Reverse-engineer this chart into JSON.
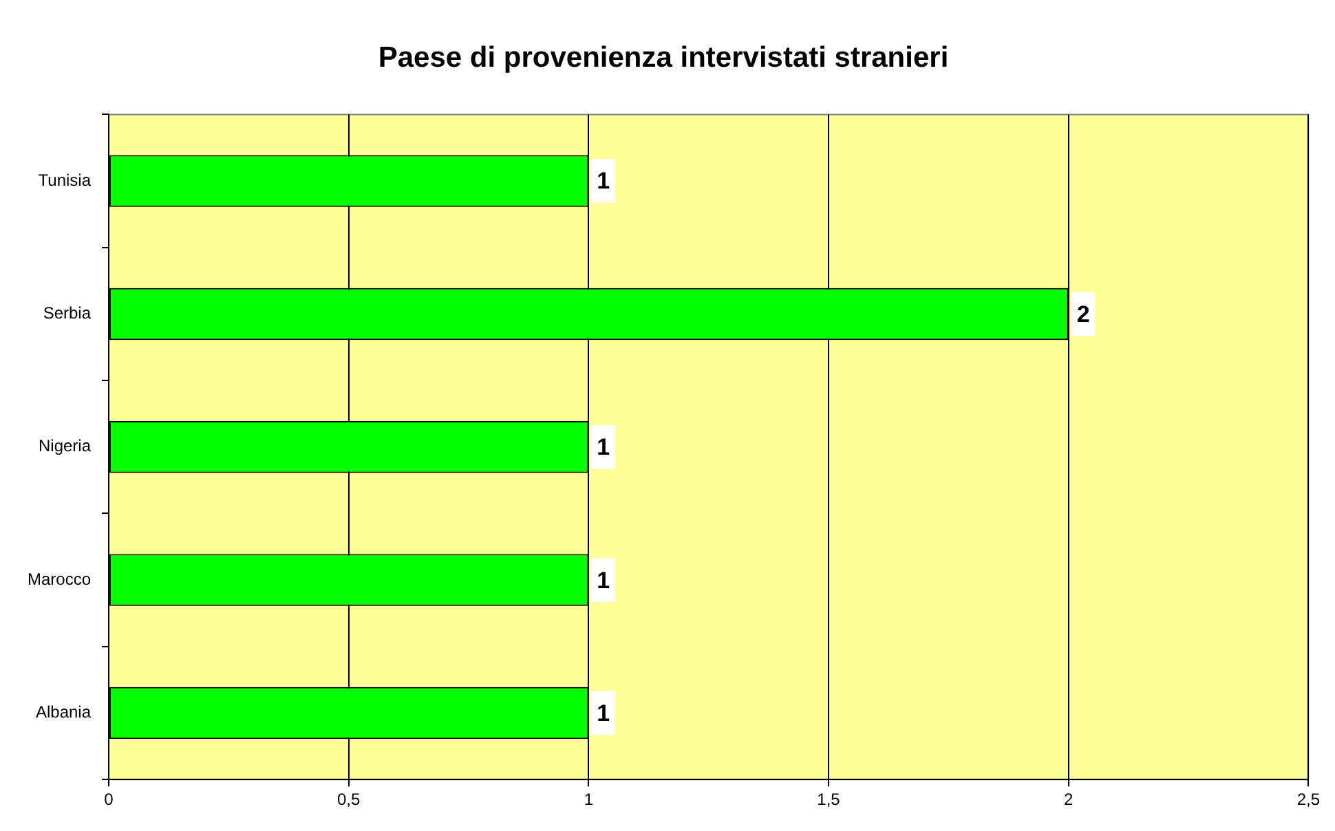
{
  "chart_data": {
    "type": "bar",
    "orientation": "horizontal",
    "title": "Paese di provenienza intervistati stranieri",
    "categories": [
      "Tunisia",
      "Serbia",
      "Nigeria",
      "Marocco",
      "Albania"
    ],
    "values": [
      1,
      2,
      1,
      1,
      1
    ],
    "color": "#00ff00",
    "xlim": [
      0,
      2.5
    ],
    "xticks": [
      0,
      {
        "value": 0.5,
        "label": "0,5"
      },
      1,
      {
        "value": 1.5,
        "label": "1,5"
      },
      2,
      {
        "value": 2.5,
        "label": "2,5"
      }
    ],
    "grid": "x",
    "legend": false,
    "data_labels": true
  }
}
